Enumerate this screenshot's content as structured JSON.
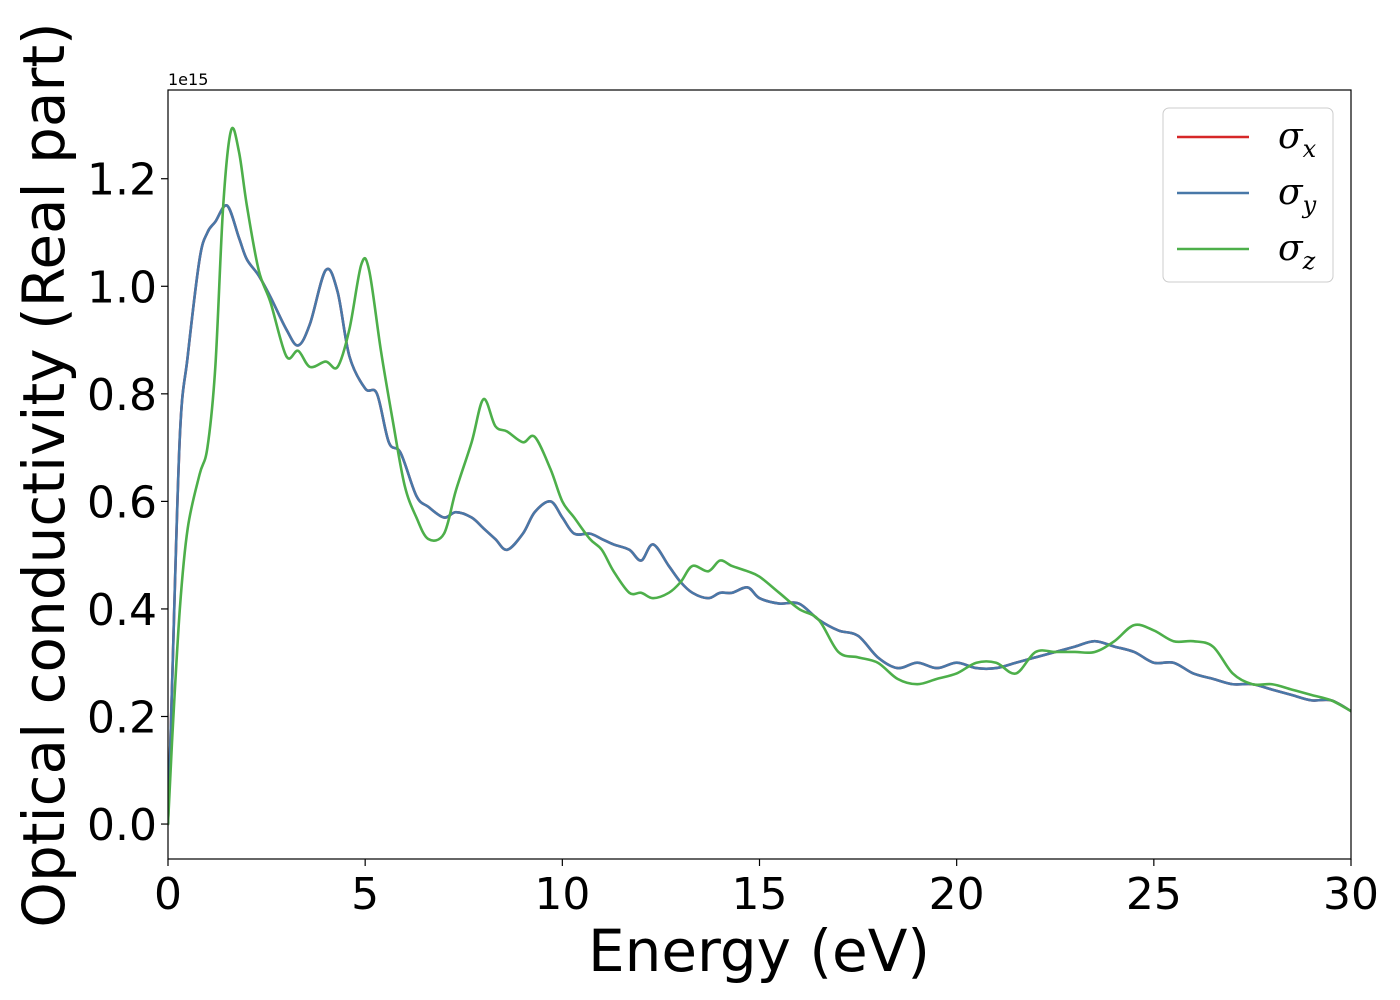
{
  "chart_data": {
    "type": "line",
    "title": "",
    "xlabel": "Energy (eV)",
    "ylabel": "Optical conductivity (Real part)",
    "y_offset_text": "1e15",
    "xlim": [
      0,
      30
    ],
    "ylim": [
      -0.065,
      1.365
    ],
    "x_ticks": [
      0,
      5,
      10,
      15,
      20,
      25,
      30
    ],
    "x_tick_labels": [
      "0",
      "5",
      "10",
      "15",
      "20",
      "25",
      "30"
    ],
    "y_ticks": [
      0.0,
      0.2,
      0.4,
      0.6,
      0.8,
      1.0,
      1.2
    ],
    "y_tick_labels": [
      "0.0",
      "0.2",
      "0.4",
      "0.6",
      "0.8",
      "1.0",
      "1.2"
    ],
    "grid": false,
    "legend_position": "top-right",
    "colors": {
      "sigma_x": "#d62728",
      "sigma_y": "#4878a8",
      "sigma_z": "#4daf4a",
      "legend_border": "#cccccc"
    },
    "series": [
      {
        "name": "σx",
        "legend_base": "σ",
        "legend_sub": "x",
        "x": [
          0,
          0.1,
          0.3,
          0.5,
          0.8,
          1.0,
          1.2,
          1.5,
          1.8,
          2.0,
          2.3,
          2.6,
          3.0,
          3.3,
          3.6,
          4.0,
          4.3,
          4.6,
          5.0,
          5.3,
          5.6,
          5.9,
          6.3,
          6.6,
          7.0,
          7.3,
          7.7,
          8.0,
          8.3,
          8.6,
          9.0,
          9.3,
          9.7,
          10.0,
          10.3,
          10.7,
          11.0,
          11.3,
          11.7,
          12.0,
          12.3,
          12.7,
          13.0,
          13.3,
          13.7,
          14.0,
          14.3,
          14.7,
          15.0,
          15.5,
          16.0,
          16.5,
          17.0,
          17.5,
          18.0,
          18.5,
          19.0,
          19.5,
          20.0,
          20.5,
          21.0,
          21.5,
          22.0,
          22.5,
          23.0,
          23.5,
          24.0,
          24.5,
          25.0,
          25.5,
          26.0,
          26.5,
          27.0,
          27.5,
          28.0,
          28.5,
          29.0,
          29.5,
          30.0
        ],
        "values": [
          0.0,
          0.25,
          0.72,
          0.87,
          1.05,
          1.1,
          1.12,
          1.15,
          1.09,
          1.05,
          1.02,
          0.98,
          0.92,
          0.89,
          0.93,
          1.03,
          0.99,
          0.87,
          0.81,
          0.8,
          0.71,
          0.69,
          0.61,
          0.59,
          0.57,
          0.58,
          0.57,
          0.55,
          0.53,
          0.51,
          0.54,
          0.58,
          0.6,
          0.57,
          0.54,
          0.54,
          0.53,
          0.52,
          0.51,
          0.49,
          0.52,
          0.48,
          0.45,
          0.43,
          0.42,
          0.43,
          0.43,
          0.44,
          0.42,
          0.41,
          0.41,
          0.38,
          0.36,
          0.35,
          0.31,
          0.29,
          0.3,
          0.29,
          0.3,
          0.29,
          0.29,
          0.3,
          0.31,
          0.32,
          0.33,
          0.34,
          0.33,
          0.32,
          0.3,
          0.3,
          0.28,
          0.27,
          0.26,
          0.26,
          0.25,
          0.24,
          0.23,
          0.23,
          0.21
        ]
      },
      {
        "name": "σy",
        "legend_base": "σ",
        "legend_sub": "y",
        "x": [
          0,
          0.1,
          0.3,
          0.5,
          0.8,
          1.0,
          1.2,
          1.5,
          1.8,
          2.0,
          2.3,
          2.6,
          3.0,
          3.3,
          3.6,
          4.0,
          4.3,
          4.6,
          5.0,
          5.3,
          5.6,
          5.9,
          6.3,
          6.6,
          7.0,
          7.3,
          7.7,
          8.0,
          8.3,
          8.6,
          9.0,
          9.3,
          9.7,
          10.0,
          10.3,
          10.7,
          11.0,
          11.3,
          11.7,
          12.0,
          12.3,
          12.7,
          13.0,
          13.3,
          13.7,
          14.0,
          14.3,
          14.7,
          15.0,
          15.5,
          16.0,
          16.5,
          17.0,
          17.5,
          18.0,
          18.5,
          19.0,
          19.5,
          20.0,
          20.5,
          21.0,
          21.5,
          22.0,
          22.5,
          23.0,
          23.5,
          24.0,
          24.5,
          25.0,
          25.5,
          26.0,
          26.5,
          27.0,
          27.5,
          28.0,
          28.5,
          29.0,
          29.5,
          30.0
        ],
        "values": [
          0.0,
          0.25,
          0.72,
          0.87,
          1.05,
          1.1,
          1.12,
          1.15,
          1.09,
          1.05,
          1.02,
          0.98,
          0.92,
          0.89,
          0.93,
          1.03,
          0.99,
          0.87,
          0.81,
          0.8,
          0.71,
          0.69,
          0.61,
          0.59,
          0.57,
          0.58,
          0.57,
          0.55,
          0.53,
          0.51,
          0.54,
          0.58,
          0.6,
          0.57,
          0.54,
          0.54,
          0.53,
          0.52,
          0.51,
          0.49,
          0.52,
          0.48,
          0.45,
          0.43,
          0.42,
          0.43,
          0.43,
          0.44,
          0.42,
          0.41,
          0.41,
          0.38,
          0.36,
          0.35,
          0.31,
          0.29,
          0.3,
          0.29,
          0.3,
          0.29,
          0.29,
          0.3,
          0.31,
          0.32,
          0.33,
          0.34,
          0.33,
          0.32,
          0.3,
          0.3,
          0.28,
          0.27,
          0.26,
          0.26,
          0.25,
          0.24,
          0.23,
          0.23,
          0.21
        ]
      },
      {
        "name": "σz",
        "legend_base": "σ",
        "legend_sub": "z",
        "x": [
          0,
          0.1,
          0.3,
          0.5,
          0.8,
          1.0,
          1.2,
          1.4,
          1.6,
          1.8,
          2.0,
          2.3,
          2.6,
          3.0,
          3.3,
          3.6,
          4.0,
          4.3,
          4.6,
          4.9,
          5.1,
          5.4,
          5.7,
          6.0,
          6.3,
          6.6,
          7.0,
          7.3,
          7.7,
          8.0,
          8.3,
          8.6,
          9.0,
          9.3,
          9.7,
          10.0,
          10.3,
          10.7,
          11.0,
          11.3,
          11.7,
          12.0,
          12.3,
          12.7,
          13.0,
          13.3,
          13.7,
          14.0,
          14.3,
          14.7,
          15.0,
          15.5,
          16.0,
          16.5,
          17.0,
          17.5,
          18.0,
          18.5,
          19.0,
          19.5,
          20.0,
          20.5,
          21.0,
          21.5,
          22.0,
          22.5,
          23.0,
          23.5,
          24.0,
          24.5,
          25.0,
          25.5,
          26.0,
          26.5,
          27.0,
          27.5,
          28.0,
          28.5,
          29.0,
          29.5,
          30.0
        ],
        "values": [
          0.0,
          0.15,
          0.4,
          0.55,
          0.65,
          0.7,
          0.85,
          1.15,
          1.29,
          1.25,
          1.15,
          1.03,
          0.97,
          0.87,
          0.88,
          0.85,
          0.86,
          0.85,
          0.92,
          1.04,
          1.03,
          0.88,
          0.75,
          0.63,
          0.57,
          0.53,
          0.54,
          0.62,
          0.71,
          0.79,
          0.74,
          0.73,
          0.71,
          0.72,
          0.66,
          0.6,
          0.57,
          0.53,
          0.51,
          0.47,
          0.43,
          0.43,
          0.42,
          0.43,
          0.45,
          0.48,
          0.47,
          0.49,
          0.48,
          0.47,
          0.46,
          0.43,
          0.4,
          0.38,
          0.32,
          0.31,
          0.3,
          0.27,
          0.26,
          0.27,
          0.28,
          0.3,
          0.3,
          0.28,
          0.32,
          0.32,
          0.32,
          0.32,
          0.34,
          0.37,
          0.36,
          0.34,
          0.34,
          0.33,
          0.28,
          0.26,
          0.26,
          0.25,
          0.24,
          0.23,
          0.21
        ]
      }
    ]
  }
}
